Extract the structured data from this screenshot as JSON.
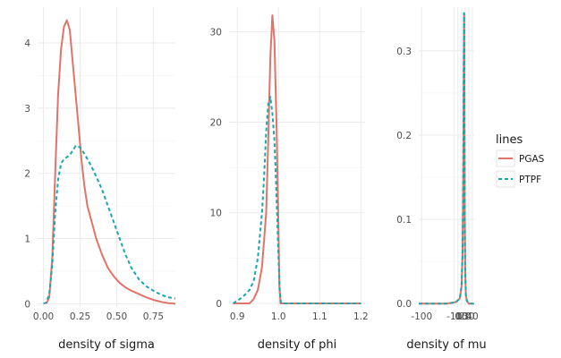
{
  "chart_data": {
    "type": "line",
    "panels": [
      {
        "xlabel": "density of sigma",
        "xlim": [
          -0.04,
          0.9
        ],
        "ylim": [
          -0.05,
          4.55
        ],
        "xticks": [
          0.0,
          0.25,
          0.5,
          0.75
        ],
        "xtick_labels": [
          "0.00",
          "0.25",
          "0.50",
          "0.75"
        ],
        "yticks": [
          0,
          1,
          2,
          3,
          4
        ],
        "ytick_labels": [
          "0",
          "1",
          "2",
          "3",
          "4"
        ],
        "series": [
          {
            "name": "PGAS",
            "x": [
              0.02,
              0.04,
              0.06,
              0.08,
              0.1,
              0.12,
              0.14,
              0.16,
              0.18,
              0.2,
              0.22,
              0.24,
              0.26,
              0.28,
              0.3,
              0.33,
              0.36,
              0.4,
              0.44,
              0.48,
              0.52,
              0.56,
              0.6,
              0.65,
              0.7,
              0.75,
              0.8,
              0.85,
              0.9
            ],
            "y": [
              0.0,
              0.1,
              0.7,
              2.0,
              3.2,
              3.9,
              4.25,
              4.35,
              4.2,
              3.7,
              3.2,
              2.7,
              2.2,
              1.8,
              1.5,
              1.25,
              1.0,
              0.75,
              0.55,
              0.42,
              0.32,
              0.25,
              0.2,
              0.15,
              0.1,
              0.06,
              0.03,
              0.01,
              0.0
            ]
          },
          {
            "name": "PTPF",
            "x": [
              0.0,
              0.02,
              0.04,
              0.06,
              0.08,
              0.1,
              0.12,
              0.14,
              0.16,
              0.18,
              0.2,
              0.22,
              0.25,
              0.28,
              0.31,
              0.34,
              0.37,
              0.4,
              0.44,
              0.48,
              0.52,
              0.56,
              0.6,
              0.65,
              0.7,
              0.75,
              0.8,
              0.85,
              0.9
            ],
            "y": [
              0.0,
              0.02,
              0.15,
              0.6,
              1.4,
              1.9,
              2.15,
              2.22,
              2.25,
              2.28,
              2.35,
              2.42,
              2.4,
              2.3,
              2.18,
              2.05,
              1.9,
              1.75,
              1.5,
              1.25,
              1.0,
              0.75,
              0.55,
              0.38,
              0.27,
              0.2,
              0.14,
              0.1,
              0.08
            ]
          }
        ]
      },
      {
        "xlabel": "density of phi",
        "xlim": [
          0.88,
          1.21
        ],
        "ylim": [
          -0.4,
          32.7
        ],
        "xticks": [
          0.9,
          1.0,
          1.1,
          1.2
        ],
        "xtick_labels": [
          "0.9",
          "1.0",
          "1.1",
          "1.2"
        ],
        "yticks": [
          0,
          10,
          20,
          30
        ],
        "ytick_labels": [
          "0",
          "10",
          "20",
          "30"
        ],
        "series": [
          {
            "name": "PGAS",
            "x": [
              0.89,
              0.93,
              0.94,
              0.95,
              0.96,
              0.97,
              0.975,
              0.98,
              0.985,
              0.99,
              0.995,
              1.0,
              1.002,
              1.005,
              1.2
            ],
            "y": [
              0.0,
              0.0,
              0.5,
              1.5,
              4.0,
              10.0,
              18.0,
              27.0,
              31.8,
              29.0,
              20.0,
              8.0,
              2.0,
              0.0,
              0.0
            ]
          },
          {
            "name": "PTPF",
            "x": [
              0.89,
              0.9,
              0.91,
              0.92,
              0.93,
              0.94,
              0.95,
              0.96,
              0.965,
              0.97,
              0.975,
              0.98,
              0.985,
              0.99,
              0.995,
              1.0,
              1.003,
              1.006,
              1.2
            ],
            "y": [
              0.0,
              0.3,
              0.6,
              1.0,
              1.5,
              2.5,
              5.0,
              10.0,
              14.0,
              19.0,
              22.0,
              22.8,
              21.0,
              18.0,
              12.0,
              5.0,
              1.5,
              0.0,
              0.0
            ]
          }
        ]
      },
      {
        "xlabel": "density of mu",
        "xlim": [
          -108,
          45
        ],
        "ylim": [
          -0.004,
          0.352
        ],
        "xticks": [
          -100,
          -10,
          0,
          10,
          20,
          30,
          40
        ],
        "xtick_labels": [
          "-100",
          "-10",
          "0",
          "10",
          "20",
          "30",
          "40"
        ],
        "yticks": [
          0.0,
          0.1,
          0.2,
          0.3
        ],
        "ytick_labels": [
          "0.0",
          "0.1",
          "0.2",
          "0.3"
        ],
        "series": [
          {
            "name": "PGAS",
            "x": [
              -108,
              -30,
              -15,
              -5,
              5,
              10,
              13,
              15,
              16,
              16.5,
              17,
              17.5,
              18,
              19,
              20,
              22,
              25,
              30,
              45
            ],
            "y": [
              0.0,
              0.0,
              0.001,
              0.002,
              0.006,
              0.02,
              0.06,
              0.15,
              0.26,
              0.32,
              0.345,
              0.3,
              0.22,
              0.1,
              0.04,
              0.01,
              0.003,
              0.0,
              0.0
            ]
          },
          {
            "name": "PTPF",
            "x": [
              -108,
              -30,
              -15,
              -5,
              5,
              10,
              13,
              15,
              16,
              16.5,
              17,
              17.5,
              18,
              19,
              20,
              22,
              25,
              30,
              45
            ],
            "y": [
              0.0,
              0.0,
              0.001,
              0.002,
              0.006,
              0.02,
              0.06,
              0.15,
              0.26,
              0.32,
              0.345,
              0.3,
              0.22,
              0.1,
              0.04,
              0.01,
              0.003,
              0.0,
              0.0
            ]
          }
        ]
      }
    ],
    "legend": {
      "title": "lines",
      "position": "right",
      "entries": [
        {
          "name": "PGAS",
          "style": "solid"
        },
        {
          "name": "PTPF",
          "style": "dashed"
        }
      ]
    },
    "colors": {
      "PGAS": "#e07468",
      "PTPF": "#1aa6ad"
    }
  }
}
